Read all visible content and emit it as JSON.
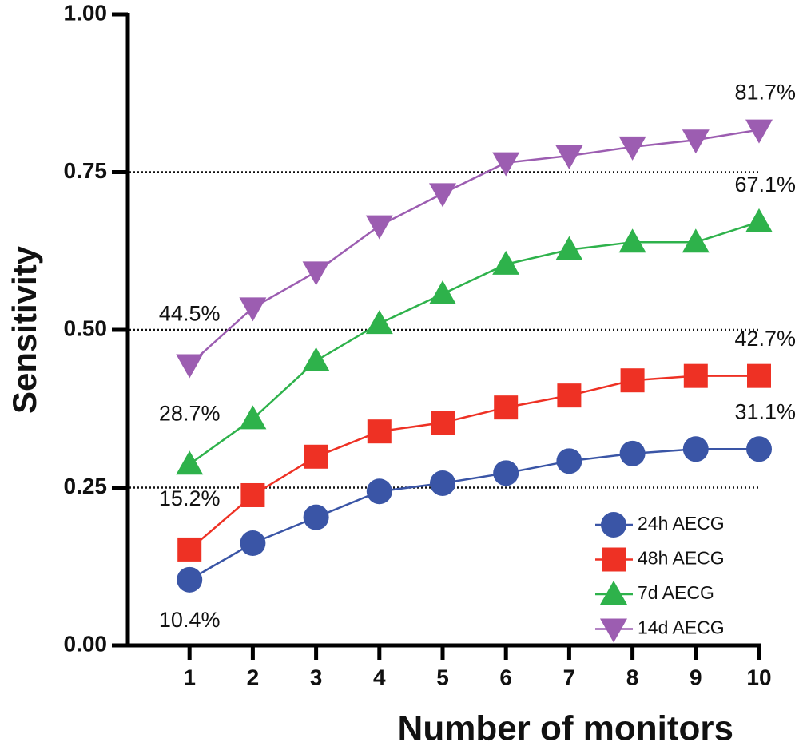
{
  "chart_data": {
    "type": "line",
    "x_label": "Number of monitors",
    "y_label": "Sensitivity",
    "x": [
      1,
      2,
      3,
      4,
      5,
      6,
      7,
      8,
      9,
      10
    ],
    "xlim": [
      0,
      10
    ],
    "xticks": [
      1,
      2,
      3,
      4,
      5,
      6,
      7,
      8,
      9,
      10
    ],
    "ylim": [
      0,
      1
    ],
    "yticks": [
      {
        "value": 0,
        "label": "0.00"
      },
      {
        "value": 0.25,
        "label": "0.25"
      },
      {
        "value": 0.5,
        "label": "0.50"
      },
      {
        "value": 0.75,
        "label": "0.75"
      },
      {
        "value": 1,
        "label": "1.00"
      }
    ],
    "grid_lines": [
      0.25,
      0.5,
      0.75
    ],
    "legend": "lower right",
    "series": [
      {
        "name": "24h AECG",
        "color": "#3a55a6",
        "marker": "circle",
        "values": [
          0.104,
          0.162,
          0.203,
          0.244,
          0.257,
          0.273,
          0.292,
          0.304,
          0.311,
          0.311
        ],
        "value_labels": [
          "10.4%",
          null,
          null,
          null,
          null,
          null,
          null,
          null,
          null,
          "31.1%"
        ]
      },
      {
        "name": "48h AECG",
        "color": "#ee3124",
        "marker": "square",
        "values": [
          0.152,
          0.238,
          0.299,
          0.339,
          0.353,
          0.377,
          0.396,
          0.42,
          0.427,
          0.427
        ],
        "value_labels": [
          "15.2%",
          null,
          null,
          null,
          null,
          null,
          null,
          null,
          null,
          "42.7%"
        ]
      },
      {
        "name": "7d AECG",
        "color": "#2eb24b",
        "marker": "triangle-up",
        "values": [
          0.287,
          0.359,
          0.451,
          0.51,
          0.557,
          0.604,
          0.627,
          0.639,
          0.639,
          0.671
        ],
        "value_labels": [
          "28.7%",
          null,
          null,
          null,
          null,
          null,
          null,
          null,
          null,
          "67.1%"
        ]
      },
      {
        "name": "14d AECG",
        "color": "#9c5db1",
        "marker": "triangle-down",
        "values": [
          0.445,
          0.535,
          0.592,
          0.665,
          0.716,
          0.765,
          0.776,
          0.79,
          0.801,
          0.817
        ],
        "value_labels": [
          "44.5%",
          null,
          null,
          null,
          null,
          null,
          null,
          null,
          null,
          "81.7%"
        ]
      }
    ]
  }
}
